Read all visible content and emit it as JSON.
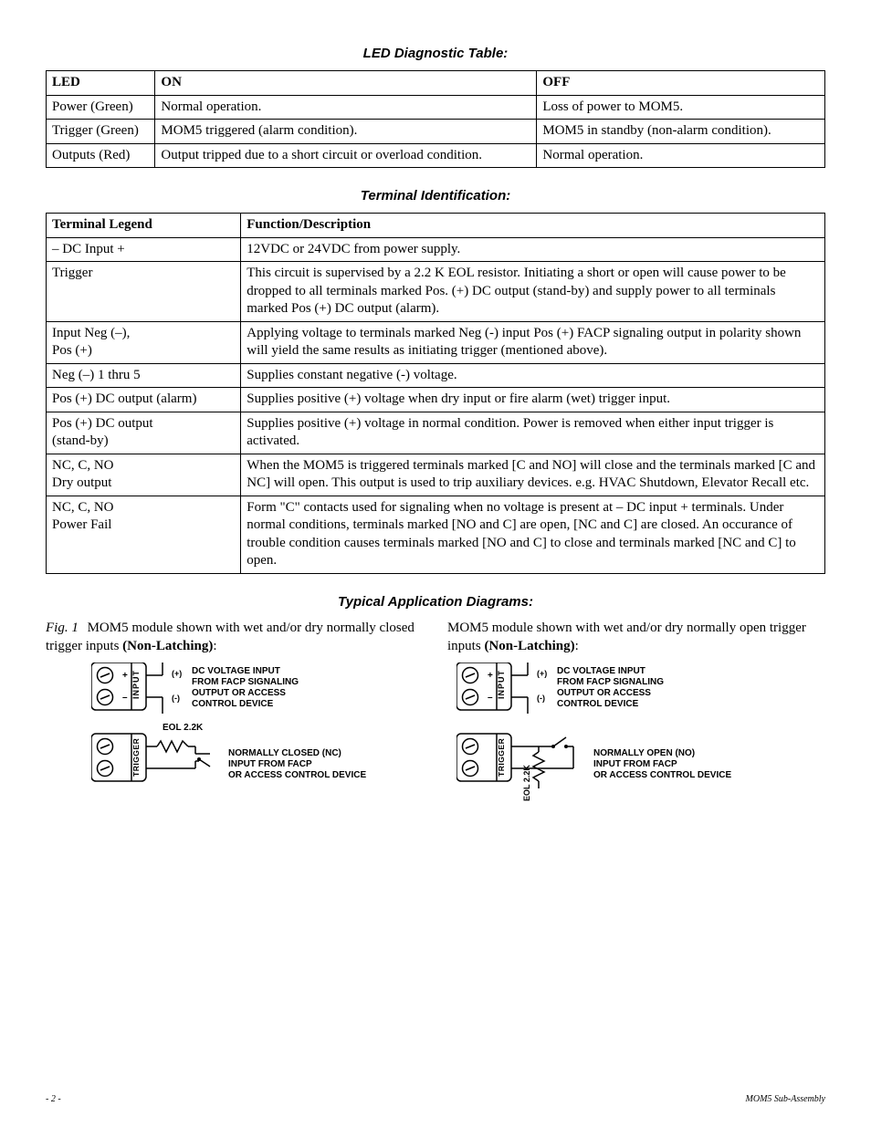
{
  "section_heads": {
    "led": "LED Diagnostic Table:",
    "terminal": "Terminal Identification:",
    "diagrams": "Typical Application Diagrams:"
  },
  "led_table": {
    "headers": [
      "LED",
      "ON",
      "OFF"
    ],
    "rows": [
      [
        "Power (Green)",
        "Normal operation.",
        "Loss of power to MOM5."
      ],
      [
        "Trigger (Green)",
        "MOM5 triggered (alarm condition).",
        "MOM5 in standby (non-alarm condition)."
      ],
      [
        "Outputs (Red)",
        "Output tripped due to a short circuit or overload condition.",
        "Normal operation."
      ]
    ],
    "col_widths": [
      "14%",
      "49%",
      "37%"
    ]
  },
  "terminal_table": {
    "headers": [
      "Terminal Legend",
      "Function/Description"
    ],
    "rows": [
      [
        "– DC Input +",
        "12VDC or 24VDC from power supply."
      ],
      [
        "Trigger",
        "This circuit is supervised by a 2.2 K EOL resistor. Initiating a short or open will cause power to be dropped to all terminals marked Pos. (+) DC output (stand-by) and supply power to all terminals marked Pos (+) DC output (alarm)."
      ],
      [
        "Input Neg (–),\nPos (+)",
        "Applying voltage to terminals marked Neg (-) input Pos (+) FACP signaling output in polarity shown will yield the same results as initiating trigger (mentioned above)."
      ],
      [
        "Neg (–) 1 thru 5",
        "Supplies constant negative (-) voltage."
      ],
      [
        "Pos (+) DC output (alarm)",
        "Supplies positive (+) voltage when dry input or fire alarm (wet) trigger input."
      ],
      [
        "Pos (+) DC output\n(stand-by)",
        "Supplies positive (+) voltage in normal condition. Power is removed when either input trigger is activated."
      ],
      [
        "NC, C, NO\nDry output",
        "When the MOM5 is triggered terminals marked [C and NO] will close and the terminals marked [C and NC] will open. This output is used to trip auxiliary devices. e.g. HVAC Shutdown, Elevator Recall etc."
      ],
      [
        "NC, C, NO\nPower Fail",
        "Form \"C\" contacts used for signaling when no voltage is present at  – DC input + terminals. Under normal conditions, terminals marked [NO and C] are open, [NC and C] are closed. An occurance of trouble condition causes terminals marked [NO and C] to close and terminals marked [NC and C] to open."
      ]
    ],
    "col_widths": [
      "25%",
      "75%"
    ]
  },
  "fig1": {
    "label": "Fig. 1",
    "caption_a_body": "MOM5 module shown with wet and/or dry normally closed trigger inputs ",
    "caption_a_bold": "(Non-Latching)",
    "caption_a_tail": ":",
    "caption_b_body": "MOM5 module shown with wet and/or dry normally open trigger inputs ",
    "caption_b_bold": "(Non-Latching)",
    "caption_b_tail": ":"
  },
  "diag": {
    "input_label": "INPUT",
    "trigger_label": "TRIGGER",
    "plus": "+",
    "minus": "–",
    "dc_text_l1": "DC VOLTAGE INPUT",
    "dc_text_l2": "FROM FACP SIGNALING",
    "dc_text_l3": "OUTPUT OR ACCESS",
    "dc_text_l4": "CONTROL DEVICE",
    "polarity_plus": "(+)",
    "polarity_minus": "(-)",
    "eol": "EOL 2.2K",
    "nc_l1": "NORMALLY CLOSED (NC)",
    "no_l1": "NORMALLY OPEN (NO)",
    "src_l2": "INPUT FROM FACP",
    "src_l3": "OR ACCESS CONTROL DEVICE"
  },
  "footer": {
    "page": "- 2 -",
    "doc": "MOM5 Sub-Assembly"
  },
  "colors": {
    "text": "#000000",
    "border": "#000000",
    "bg": "#ffffff"
  }
}
